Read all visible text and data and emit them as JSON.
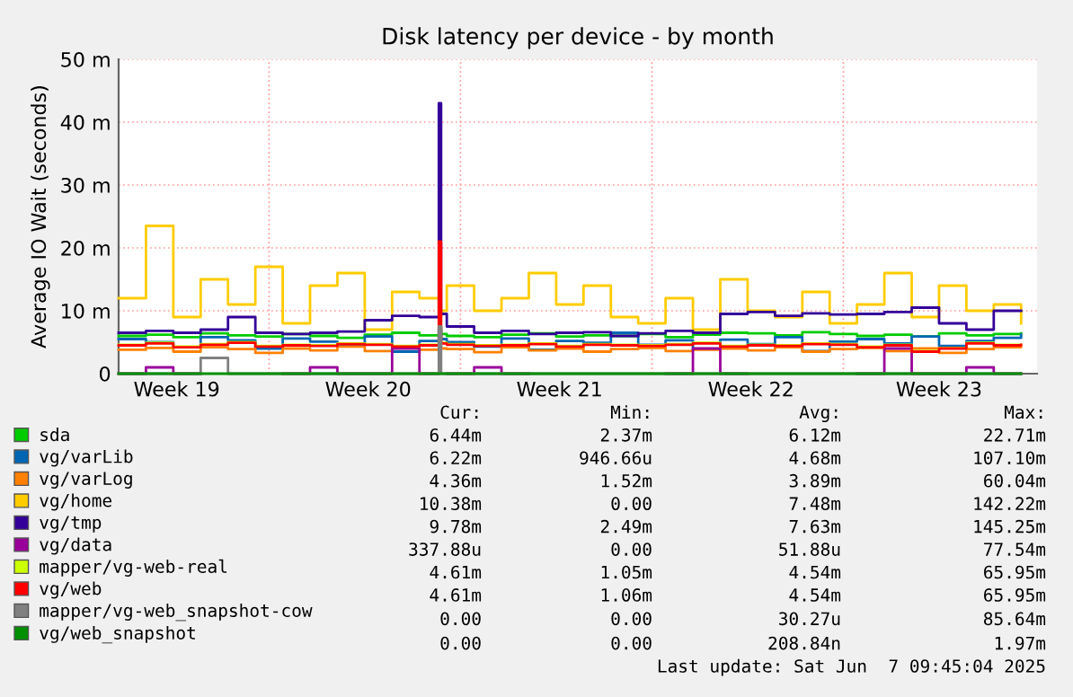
{
  "chart_data": {
    "type": "step",
    "title": "Disk latency per device - by month",
    "ylabel": "Average IO Wait (seconds)",
    "x": [
      "2025-05-06T12:00",
      "2025-05-07T12:00",
      "2025-05-08T12:00",
      "2025-05-09T12:00",
      "2025-05-10T12:00",
      "2025-05-11T12:00",
      "2025-05-12T12:00",
      "2025-05-13T12:00",
      "2025-05-14T12:00",
      "2025-05-15T12:00",
      "2025-05-16T12:00",
      "2025-05-17T12:00",
      "2025-05-18T05:00",
      "2025-05-18T07:00",
      "2025-05-18T12:00",
      "2025-05-19T12:00",
      "2025-05-20T12:00",
      "2025-05-21T12:00",
      "2025-05-22T12:00",
      "2025-05-23T12:00",
      "2025-05-24T12:00",
      "2025-05-25T12:00",
      "2025-05-26T12:00",
      "2025-05-27T12:00",
      "2025-05-28T12:00",
      "2025-05-29T12:00",
      "2025-05-30T12:00",
      "2025-05-31T12:00",
      "2025-06-01T12:00",
      "2025-06-02T12:00",
      "2025-06-03T12:00",
      "2025-06-04T12:00",
      "2025-06-05T12:00",
      "2025-06-06T12:00",
      "2025-06-07T12:00",
      "2025-06-08T12:00"
    ],
    "xlim": [
      "2025-05-06T12:00",
      "2025-06-09T02:00"
    ],
    "xticks": [
      {
        "value": "2025-05-08T15:00",
        "label": "Week 19"
      },
      {
        "value": "2025-05-12T00:00",
        "label": null
      },
      {
        "value": "2025-05-15T15:00",
        "label": "Week 20"
      },
      {
        "value": "2025-05-19T00:00",
        "label": null
      },
      {
        "value": "2025-05-22T15:00",
        "label": "Week 21"
      },
      {
        "value": "2025-05-26T00:00",
        "label": null
      },
      {
        "value": "2025-05-29T15:00",
        "label": "Week 22"
      },
      {
        "value": "2025-06-02T00:00",
        "label": null
      },
      {
        "value": "2025-06-05T12:00",
        "label": "Week 23"
      }
    ],
    "ylim": [
      0,
      50
    ],
    "yticks": [
      0,
      {
        "value": 10,
        "label": "10 m"
      },
      {
        "value": 20,
        "label": "20 m"
      },
      {
        "value": 30,
        "label": "30 m"
      },
      {
        "value": 40,
        "label": "40 m"
      },
      {
        "value": 50,
        "label": "50 m"
      }
    ],
    "grid": true,
    "legend": "bottom",
    "line_style": "solid",
    "marker": "none",
    "series": [
      {
        "name": "sda",
        "color": "#00cc00",
        "values": [
          6.0,
          6.2,
          5.8,
          6.4,
          6.1,
          5.9,
          6.3,
          6.0,
          5.7,
          6.2,
          6.5,
          6.1,
          7.5,
          6.3,
          6.0,
          5.8,
          6.2,
          6.4,
          5.9,
          6.1,
          6.0,
          6.3,
          5.8,
          6.2,
          6.5,
          6.4,
          6.1,
          6.6,
          6.3,
          6.0,
          6.2,
          5.9,
          6.4,
          6.1,
          6.3,
          6.4
        ]
      },
      {
        "name": "vg/varLib",
        "color": "#0066b3",
        "values": [
          5.5,
          5.0,
          4.2,
          5.8,
          5.3,
          4.0,
          5.6,
          5.1,
          4.5,
          5.9,
          3.5,
          5.2,
          7.0,
          5.5,
          5.0,
          4.3,
          5.6,
          3.8,
          5.2,
          4.9,
          6.5,
          4.6,
          5.3,
          3.9,
          5.4,
          4.7,
          5.8,
          3.6,
          5.1,
          5.5,
          4.8,
          5.9,
          4.4,
          5.2,
          5.7,
          6.2
        ]
      },
      {
        "name": "vg/varLog",
        "color": "#ff8000",
        "values": [
          3.8,
          4.1,
          3.5,
          4.2,
          3.9,
          3.3,
          4.0,
          3.7,
          4.3,
          3.6,
          4.1,
          3.8,
          6.0,
          4.0,
          3.9,
          3.4,
          4.2,
          3.7,
          4.0,
          3.5,
          3.9,
          4.1,
          3.6,
          3.8,
          4.0,
          3.7,
          4.2,
          3.5,
          3.9,
          4.1,
          3.6,
          4.0,
          3.3,
          3.9,
          4.2,
          4.4
        ]
      },
      {
        "name": "vg/home",
        "color": "#ffcc00",
        "values": [
          12,
          23.5,
          9,
          15,
          11,
          17,
          8,
          14,
          16,
          7,
          13,
          12,
          9,
          10,
          14,
          10,
          12,
          16,
          11,
          14,
          9,
          8,
          12,
          7,
          15,
          10,
          9,
          13,
          8,
          11,
          16,
          9,
          14,
          10,
          11,
          8
        ]
      },
      {
        "name": "vg/tmp",
        "color": "#330099",
        "values": [
          6.5,
          6.8,
          6.5,
          7.0,
          9.0,
          6.5,
          6.3,
          6.5,
          6.7,
          8.5,
          9.2,
          9.0,
          43,
          9.5,
          7.5,
          6.5,
          6.8,
          6.3,
          6.5,
          6.6,
          6.0,
          6.4,
          6.8,
          6.5,
          9.5,
          9.8,
          9.2,
          9.6,
          9.4,
          9.5,
          9.8,
          10.5,
          8.0,
          7.0,
          10.0,
          10.0
        ]
      },
      {
        "name": "vg/data",
        "color": "#990099",
        "values": [
          0,
          1.0,
          0,
          null,
          null,
          null,
          0,
          1.0,
          0,
          0,
          4.0,
          0,
          null,
          null,
          0,
          1.0,
          0,
          null,
          null,
          null,
          null,
          null,
          0,
          4.0,
          0,
          null,
          null,
          null,
          null,
          0,
          4.0,
          0,
          0,
          1.0,
          0,
          0
        ]
      },
      {
        "name": "mapper/vg-web-real",
        "color": "#ccff00",
        "values": [
          4.6,
          4.9,
          4.3,
          4.7,
          5.0,
          4.4,
          4.6,
          4.5,
          4.8,
          4.7,
          4.4,
          4.6,
          5.0,
          4.9,
          4.7,
          4.5,
          4.6,
          4.8,
          4.4,
          4.7,
          4.6,
          4.5,
          4.7,
          4.9,
          4.4,
          4.6,
          4.5,
          4.8,
          4.7,
          4.3,
          4.6,
          3.6,
          4.1,
          4.9,
          4.6,
          4.6
        ]
      },
      {
        "name": "vg/web",
        "color": "#ff0000",
        "values": [
          4.5,
          4.8,
          4.2,
          4.6,
          4.9,
          4.3,
          4.5,
          4.4,
          4.7,
          4.6,
          4.3,
          4.5,
          21,
          4.8,
          4.6,
          4.4,
          4.5,
          4.7,
          4.3,
          4.6,
          4.5,
          4.4,
          4.6,
          4.8,
          4.3,
          4.5,
          4.4,
          4.7,
          4.6,
          4.2,
          4.5,
          3.5,
          4.0,
          4.8,
          4.5,
          4.6
        ]
      },
      {
        "name": "mapper/vg-web_snapshot-cow",
        "color": "#808080",
        "values": [
          0,
          0,
          0,
          2.5,
          0,
          0,
          0,
          0,
          0,
          0,
          0,
          0,
          7.5,
          0,
          0,
          0,
          0,
          0,
          0,
          0,
          0,
          0,
          0,
          0,
          0,
          0,
          0,
          0,
          0,
          0,
          0,
          0,
          0,
          0,
          0,
          0
        ]
      },
      {
        "name": "vg/web_snapshot",
        "color": "#008f00",
        "values": [
          0,
          0,
          0,
          0,
          0,
          0,
          0,
          0,
          0,
          0,
          0,
          0,
          0,
          0,
          0,
          0,
          0,
          0,
          0,
          0,
          0,
          0,
          0,
          0,
          0,
          0,
          0,
          0,
          0,
          0,
          0,
          0,
          0,
          0,
          0,
          0
        ]
      }
    ],
    "annotations": [
      "Cur:",
      "Min:",
      "Avg:",
      "Max:",
      "6.44m",
      "2.37m",
      "6.12m",
      "22.71m",
      "6.22m",
      "946.66u",
      "4.68m",
      "107.10m",
      "4.36m",
      "1.52m",
      "3.89m",
      "60.04m",
      "10.38m",
      "0.00",
      "7.48m",
      "142.22m",
      "9.78m",
      "2.49m",
      "7.63m",
      "145.25m",
      "337.88u",
      "0.00",
      "51.88u",
      "77.54m",
      "4.61m",
      "1.05m",
      "4.54m",
      "65.95m",
      "4.61m",
      "1.06m",
      "4.54m",
      "65.95m",
      "0.00",
      "0.00",
      "30.27u",
      "85.64m",
      "0.00",
      "0.00",
      "208.84n",
      "1.97m",
      "Last update: Sat Jun  7 09:45:04 2025"
    ]
  }
}
